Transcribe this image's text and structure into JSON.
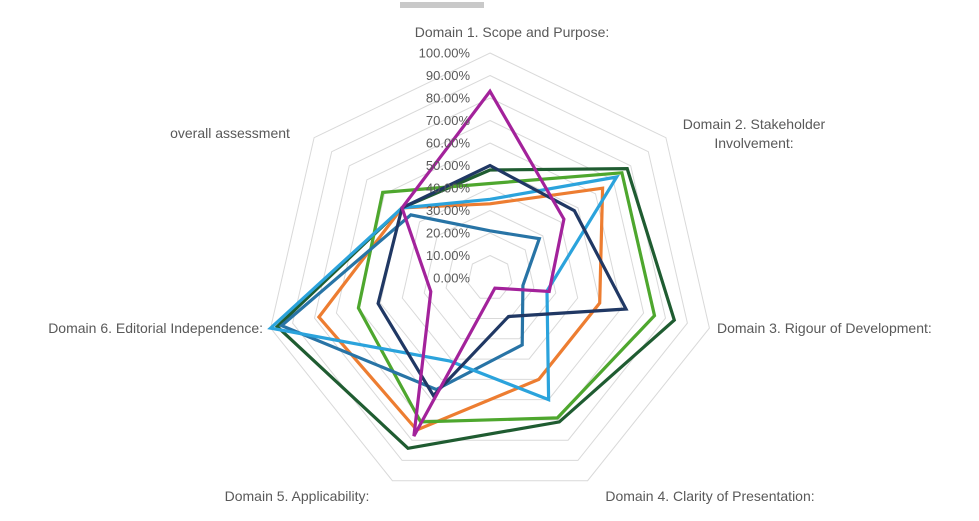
{
  "figure": {
    "background": "#ffffff",
    "gridline_color": "#d9d9d9",
    "label_color": "#595959"
  },
  "chart_data": {
    "type": "radar",
    "title": "",
    "axes": [
      {
        "id": "domain-1",
        "label_lines": [
          "Domain 1. Scope and Purpose:"
        ]
      },
      {
        "id": "domain-2",
        "label_lines": [
          "Domain 2. Stakeholder",
          "Involvement:"
        ]
      },
      {
        "id": "domain-3",
        "label_lines": [
          "Domain 3. Rigour of Development:"
        ]
      },
      {
        "id": "domain-4",
        "label_lines": [
          "Domain 4. Clarity of Presentation:"
        ]
      },
      {
        "id": "domain-5",
        "label_lines": [
          "Domain 5. Applicability:"
        ]
      },
      {
        "id": "domain-6",
        "label_lines": [
          "Domain 6. Editorial Independence:"
        ]
      },
      {
        "id": "overall",
        "label_lines": [
          "overall assessment"
        ]
      }
    ],
    "radial_axis": {
      "min": 0,
      "max": 100,
      "step": 10,
      "tick_labels": [
        "0.00%",
        "10.00%",
        "20.00%",
        "30.00%",
        "40.00%",
        "50.00%",
        "60.00%",
        "70.00%",
        "80.00%",
        "90.00%",
        "100.00%"
      ]
    },
    "grid": "concentric-heptagons",
    "legend": "none-visible",
    "value_order": [
      "domain-1",
      "domain-2",
      "domain-3",
      "domain-4",
      "domain-5",
      "domain-6",
      "overall"
    ],
    "series": [
      {
        "id": "series-dark-green",
        "color": "#1F5C31",
        "values": [
          48,
          78,
          84,
          71,
          84,
          97,
          50
        ]
      },
      {
        "id": "series-orange",
        "color": "#ED7D31",
        "values": [
          33,
          64,
          50,
          50,
          75,
          78,
          50
        ]
      },
      {
        "id": "series-light-green",
        "color": "#4EA72E",
        "values": [
          42,
          75,
          75,
          69,
          71,
          60,
          61
        ]
      },
      {
        "id": "series-steel-blue",
        "color": "#2874A6",
        "values": [
          21,
          28,
          15,
          33,
          55,
          95,
          45
        ]
      },
      {
        "id": "series-light-blue",
        "color": "#2BA3DC",
        "values": [
          35,
          72,
          26,
          60,
          41,
          100,
          50
        ]
      },
      {
        "id": "series-navy",
        "color": "#203864",
        "values": [
          50,
          48,
          62,
          19,
          58,
          51,
          50
        ]
      },
      {
        "id": "series-magenta",
        "color": "#A3229B",
        "values": [
          83,
          42,
          27,
          5,
          78,
          27,
          50
        ]
      }
    ]
  }
}
